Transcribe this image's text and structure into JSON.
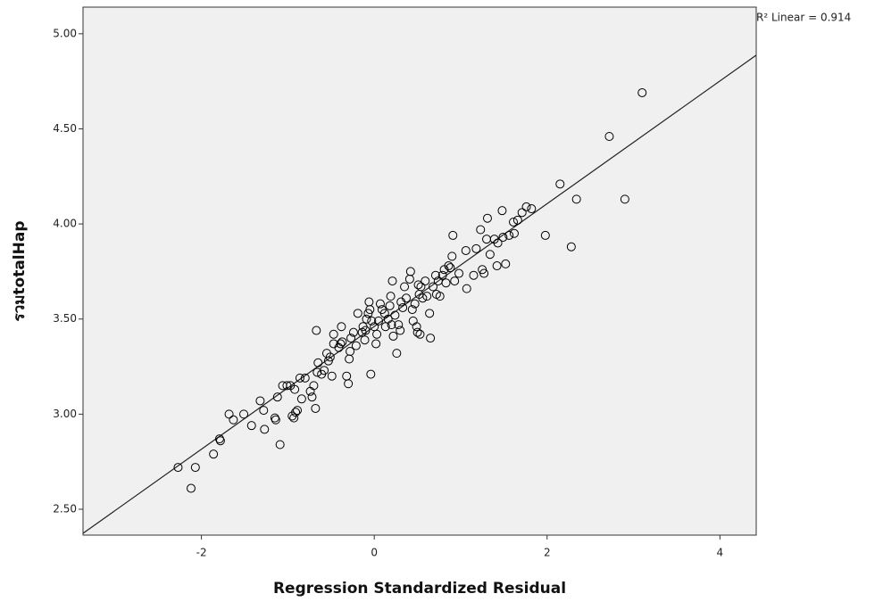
{
  "chart_data": {
    "type": "scatter",
    "x_label": "Regression Standardized Residual",
    "y_label": "รวมtotalHap",
    "annotation": "R² Linear = 0.914",
    "xlim": [
      -3.37,
      4.42
    ],
    "ylim": [
      2.364,
      5.14
    ],
    "xticks": [
      -2,
      0,
      2,
      4
    ],
    "yticks": [
      {
        "value": 2.5,
        "label": "2.50"
      },
      {
        "value": 3,
        "label": "3.00"
      },
      {
        "value": 3.5,
        "label": "3.50"
      },
      {
        "value": 4,
        "label": "4.00"
      },
      {
        "value": 4.5,
        "label": "4.50"
      },
      {
        "value": 5,
        "label": "5.00"
      }
    ],
    "fit_line": {
      "intercept": 3.461,
      "slope": 0.3227
    },
    "color": "#000000",
    "x": [
      -2.27,
      -2.12,
      -2.07,
      -1.86,
      -1.79,
      -1.78,
      -1.68,
      -1.63,
      -1.51,
      -1.42,
      -1.32,
      -1.27,
      -1.28,
      -1.14,
      -1.15,
      -1.09,
      -1.12,
      -1.06,
      -1.01,
      -0.97,
      -0.95,
      -0.93,
      -0.91,
      -0.89,
      -0.92,
      -0.86,
      -0.84,
      -0.8,
      -0.74,
      -0.72,
      -0.7,
      -0.68,
      -0.66,
      -0.65,
      -0.67,
      -0.61,
      -0.58,
      -0.55,
      -0.53,
      -0.51,
      -0.49,
      -0.47,
      -0.47,
      -0.41,
      -0.39,
      -0.38,
      -0.37,
      -0.32,
      -0.3,
      -0.29,
      -0.28,
      -0.27,
      -0.24,
      -0.21,
      -0.19,
      -0.14,
      -0.13,
      -0.11,
      -0.1,
      -0.09,
      -0.07,
      -0.06,
      -0.05,
      -0.04,
      -0.03,
      0.0,
      0.02,
      0.03,
      0.05,
      0.07,
      0.09,
      0.12,
      0.13,
      0.16,
      0.18,
      0.19,
      0.2,
      0.21,
      0.22,
      0.24,
      0.26,
      0.28,
      0.3,
      0.31,
      0.33,
      0.35,
      0.37,
      0.41,
      0.42,
      0.44,
      0.45,
      0.47,
      0.49,
      0.5,
      0.51,
      0.52,
      0.53,
      0.54,
      0.56,
      0.59,
      0.61,
      0.64,
      0.65,
      0.68,
      0.71,
      0.72,
      0.74,
      0.76,
      0.79,
      0.81,
      0.83,
      0.86,
      0.88,
      0.9,
      0.91,
      0.93,
      0.98,
      1.06,
      1.07,
      1.15,
      1.18,
      1.23,
      1.25,
      1.27,
      1.3,
      1.31,
      1.34,
      1.39,
      1.42,
      1.43,
      1.48,
      1.49,
      1.52,
      1.56,
      1.61,
      1.62,
      1.66,
      1.71,
      1.76,
      1.82,
      1.98,
      2.15,
      2.28,
      2.34,
      2.72,
      2.9,
      3.1
    ],
    "y": [
      2.72,
      2.61,
      2.72,
      2.79,
      2.87,
      2.86,
      3.0,
      2.97,
      3.0,
      2.94,
      3.07,
      2.92,
      3.02,
      2.97,
      2.98,
      2.84,
      3.09,
      3.15,
      3.15,
      3.15,
      2.99,
      2.98,
      3.01,
      3.02,
      3.13,
      3.19,
      3.08,
      3.19,
      3.12,
      3.09,
      3.15,
      3.03,
      3.22,
      3.27,
      3.44,
      3.21,
      3.23,
      3.32,
      3.28,
      3.3,
      3.2,
      3.37,
      3.42,
      3.35,
      3.37,
      3.46,
      3.38,
      3.2,
      3.16,
      3.29,
      3.33,
      3.4,
      3.43,
      3.36,
      3.53,
      3.43,
      3.46,
      3.39,
      3.44,
      3.5,
      3.53,
      3.59,
      3.55,
      3.21,
      3.49,
      3.46,
      3.37,
      3.42,
      3.49,
      3.58,
      3.55,
      3.53,
      3.46,
      3.5,
      3.57,
      3.62,
      3.47,
      3.7,
      3.41,
      3.52,
      3.32,
      3.47,
      3.44,
      3.59,
      3.56,
      3.67,
      3.61,
      3.71,
      3.75,
      3.55,
      3.49,
      3.58,
      3.46,
      3.43,
      3.68,
      3.63,
      3.42,
      3.67,
      3.61,
      3.7,
      3.62,
      3.53,
      3.4,
      3.67,
      3.73,
      3.63,
      3.7,
      3.62,
      3.73,
      3.76,
      3.69,
      3.78,
      3.77,
      3.83,
      3.94,
      3.7,
      3.74,
      3.86,
      3.66,
      3.73,
      3.87,
      3.97,
      3.76,
      3.74,
      3.92,
      4.03,
      3.84,
      3.92,
      3.78,
      3.9,
      4.07,
      3.93,
      3.79,
      3.94,
      4.01,
      3.95,
      4.02,
      4.06,
      4.09,
      4.08,
      3.94,
      4.21,
      3.88,
      4.13,
      4.46,
      4.13,
      4.69
    ]
  }
}
